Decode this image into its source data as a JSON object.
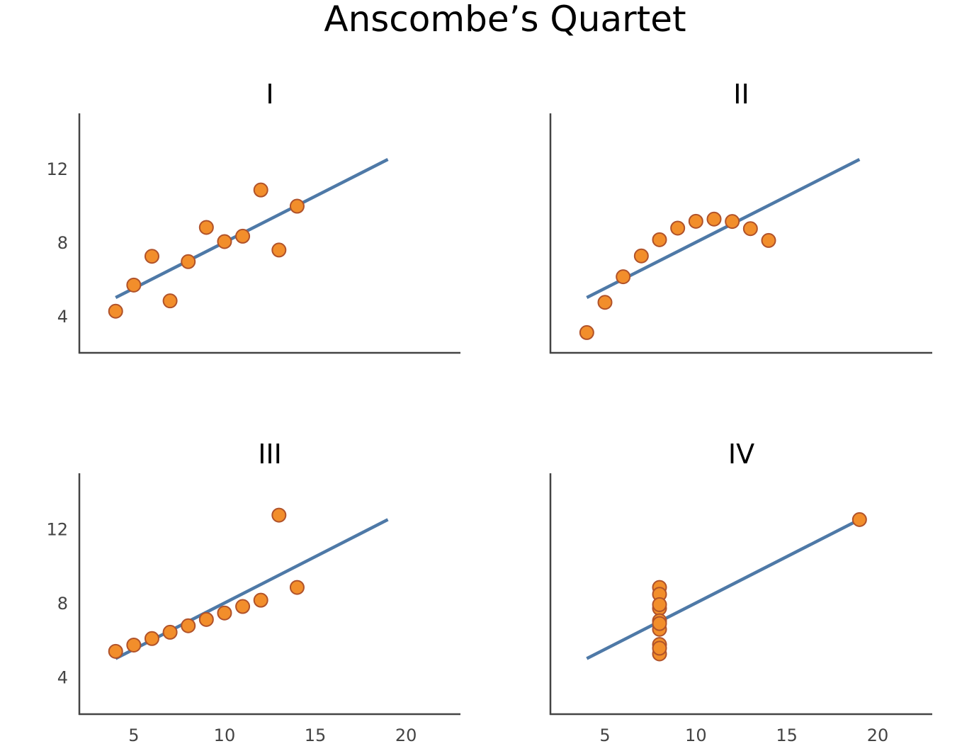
{
  "title": "Anscombe’s Quartet",
  "colors": {
    "point_fill": "#F28E2B",
    "point_edge": "#B0522A",
    "line": "#4E79A7",
    "axis": "#444444"
  },
  "chart_data": [
    {
      "type": "scatter",
      "title": "I",
      "xlim": [
        2,
        23
      ],
      "ylim": [
        2,
        15
      ],
      "xticks": [
        5,
        10,
        15,
        20
      ],
      "yticks": [
        4,
        8,
        12
      ],
      "fit": {
        "x": [
          4,
          19
        ],
        "y": [
          5.0,
          12.5
        ]
      },
      "x": [
        10,
        8,
        13,
        9,
        11,
        14,
        6,
        4,
        12,
        7,
        5
      ],
      "y": [
        8.04,
        6.95,
        7.58,
        8.81,
        8.33,
        9.96,
        7.24,
        4.26,
        10.84,
        4.82,
        5.68
      ]
    },
    {
      "type": "scatter",
      "title": "II",
      "xlim": [
        2,
        23
      ],
      "ylim": [
        2,
        15
      ],
      "xticks": [
        5,
        10,
        15,
        20
      ],
      "yticks": [
        4,
        8,
        12
      ],
      "fit": {
        "x": [
          4,
          19
        ],
        "y": [
          5.0,
          12.5
        ]
      },
      "x": [
        10,
        8,
        13,
        9,
        11,
        14,
        6,
        4,
        12,
        7,
        5
      ],
      "y": [
        9.14,
        8.14,
        8.74,
        8.77,
        9.26,
        8.1,
        6.13,
        3.1,
        9.13,
        7.26,
        4.74
      ]
    },
    {
      "type": "scatter",
      "title": "III",
      "xlim": [
        2,
        23
      ],
      "ylim": [
        2,
        15
      ],
      "xticks": [
        5,
        10,
        15,
        20
      ],
      "yticks": [
        4,
        8,
        12
      ],
      "fit": {
        "x": [
          4,
          19
        ],
        "y": [
          5.0,
          12.5
        ]
      },
      "x": [
        10,
        8,
        13,
        9,
        11,
        14,
        6,
        4,
        12,
        7,
        5
      ],
      "y": [
        7.46,
        6.77,
        12.74,
        7.11,
        7.81,
        8.84,
        6.08,
        5.39,
        8.15,
        6.42,
        5.73
      ]
    },
    {
      "type": "scatter",
      "title": "IV",
      "xlim": [
        2,
        23
      ],
      "ylim": [
        2,
        15
      ],
      "xticks": [
        5,
        10,
        15,
        20
      ],
      "yticks": [
        4,
        8,
        12
      ],
      "fit": {
        "x": [
          4,
          19
        ],
        "y": [
          5.0,
          12.5
        ]
      },
      "x": [
        8,
        8,
        8,
        8,
        8,
        8,
        8,
        19,
        8,
        8,
        8
      ],
      "y": [
        6.58,
        5.76,
        7.71,
        8.84,
        8.47,
        7.04,
        5.25,
        12.5,
        5.56,
        7.91,
        6.89
      ]
    }
  ]
}
